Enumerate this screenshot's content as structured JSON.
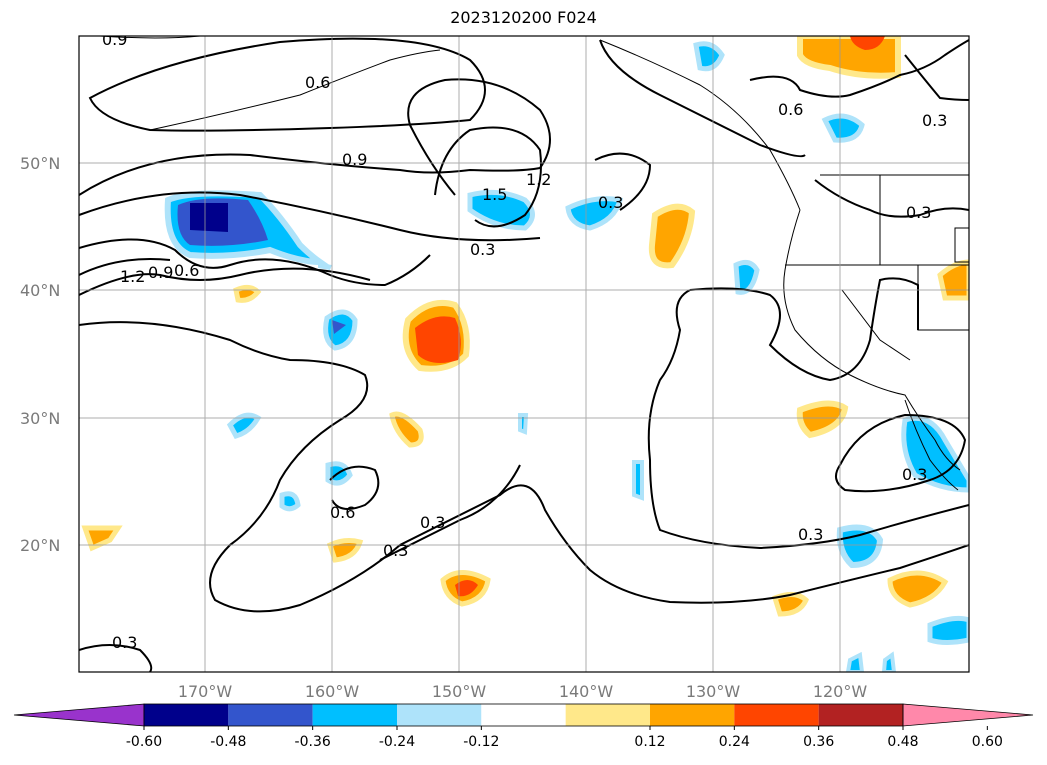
{
  "title": "2023120200 F024",
  "lat_labels": [
    "50°N",
    "40°N",
    "30°N",
    "20°N"
  ],
  "lon_labels": [
    "170°W",
    "160°W",
    "150°W",
    "140°W",
    "130°W",
    "120°W"
  ],
  "contour_labels": [
    "0.9",
    "0.6",
    "0.9",
    "1.5",
    "1.2",
    "0.3",
    "0.3",
    "1.2",
    "0.9",
    "0.6",
    "0.6",
    "0.3",
    "0.3",
    "0.3",
    "0.3",
    "0.3",
    "0.6",
    "0.3",
    "0.3"
  ],
  "colorbar": {
    "ticks": [
      "-0.60",
      "-0.48",
      "-0.36",
      "-0.24",
      "-0.12",
      "0.12",
      "0.24",
      "0.36",
      "0.48",
      "0.60"
    ],
    "colors": [
      "#9933cc",
      "#00008b",
      "#3355cc",
      "#00bfff",
      "#aee3fa",
      "#ffffff",
      "#ffe88a",
      "#ffa500",
      "#ff4500",
      "#b22222",
      "#ff88aa"
    ]
  }
}
